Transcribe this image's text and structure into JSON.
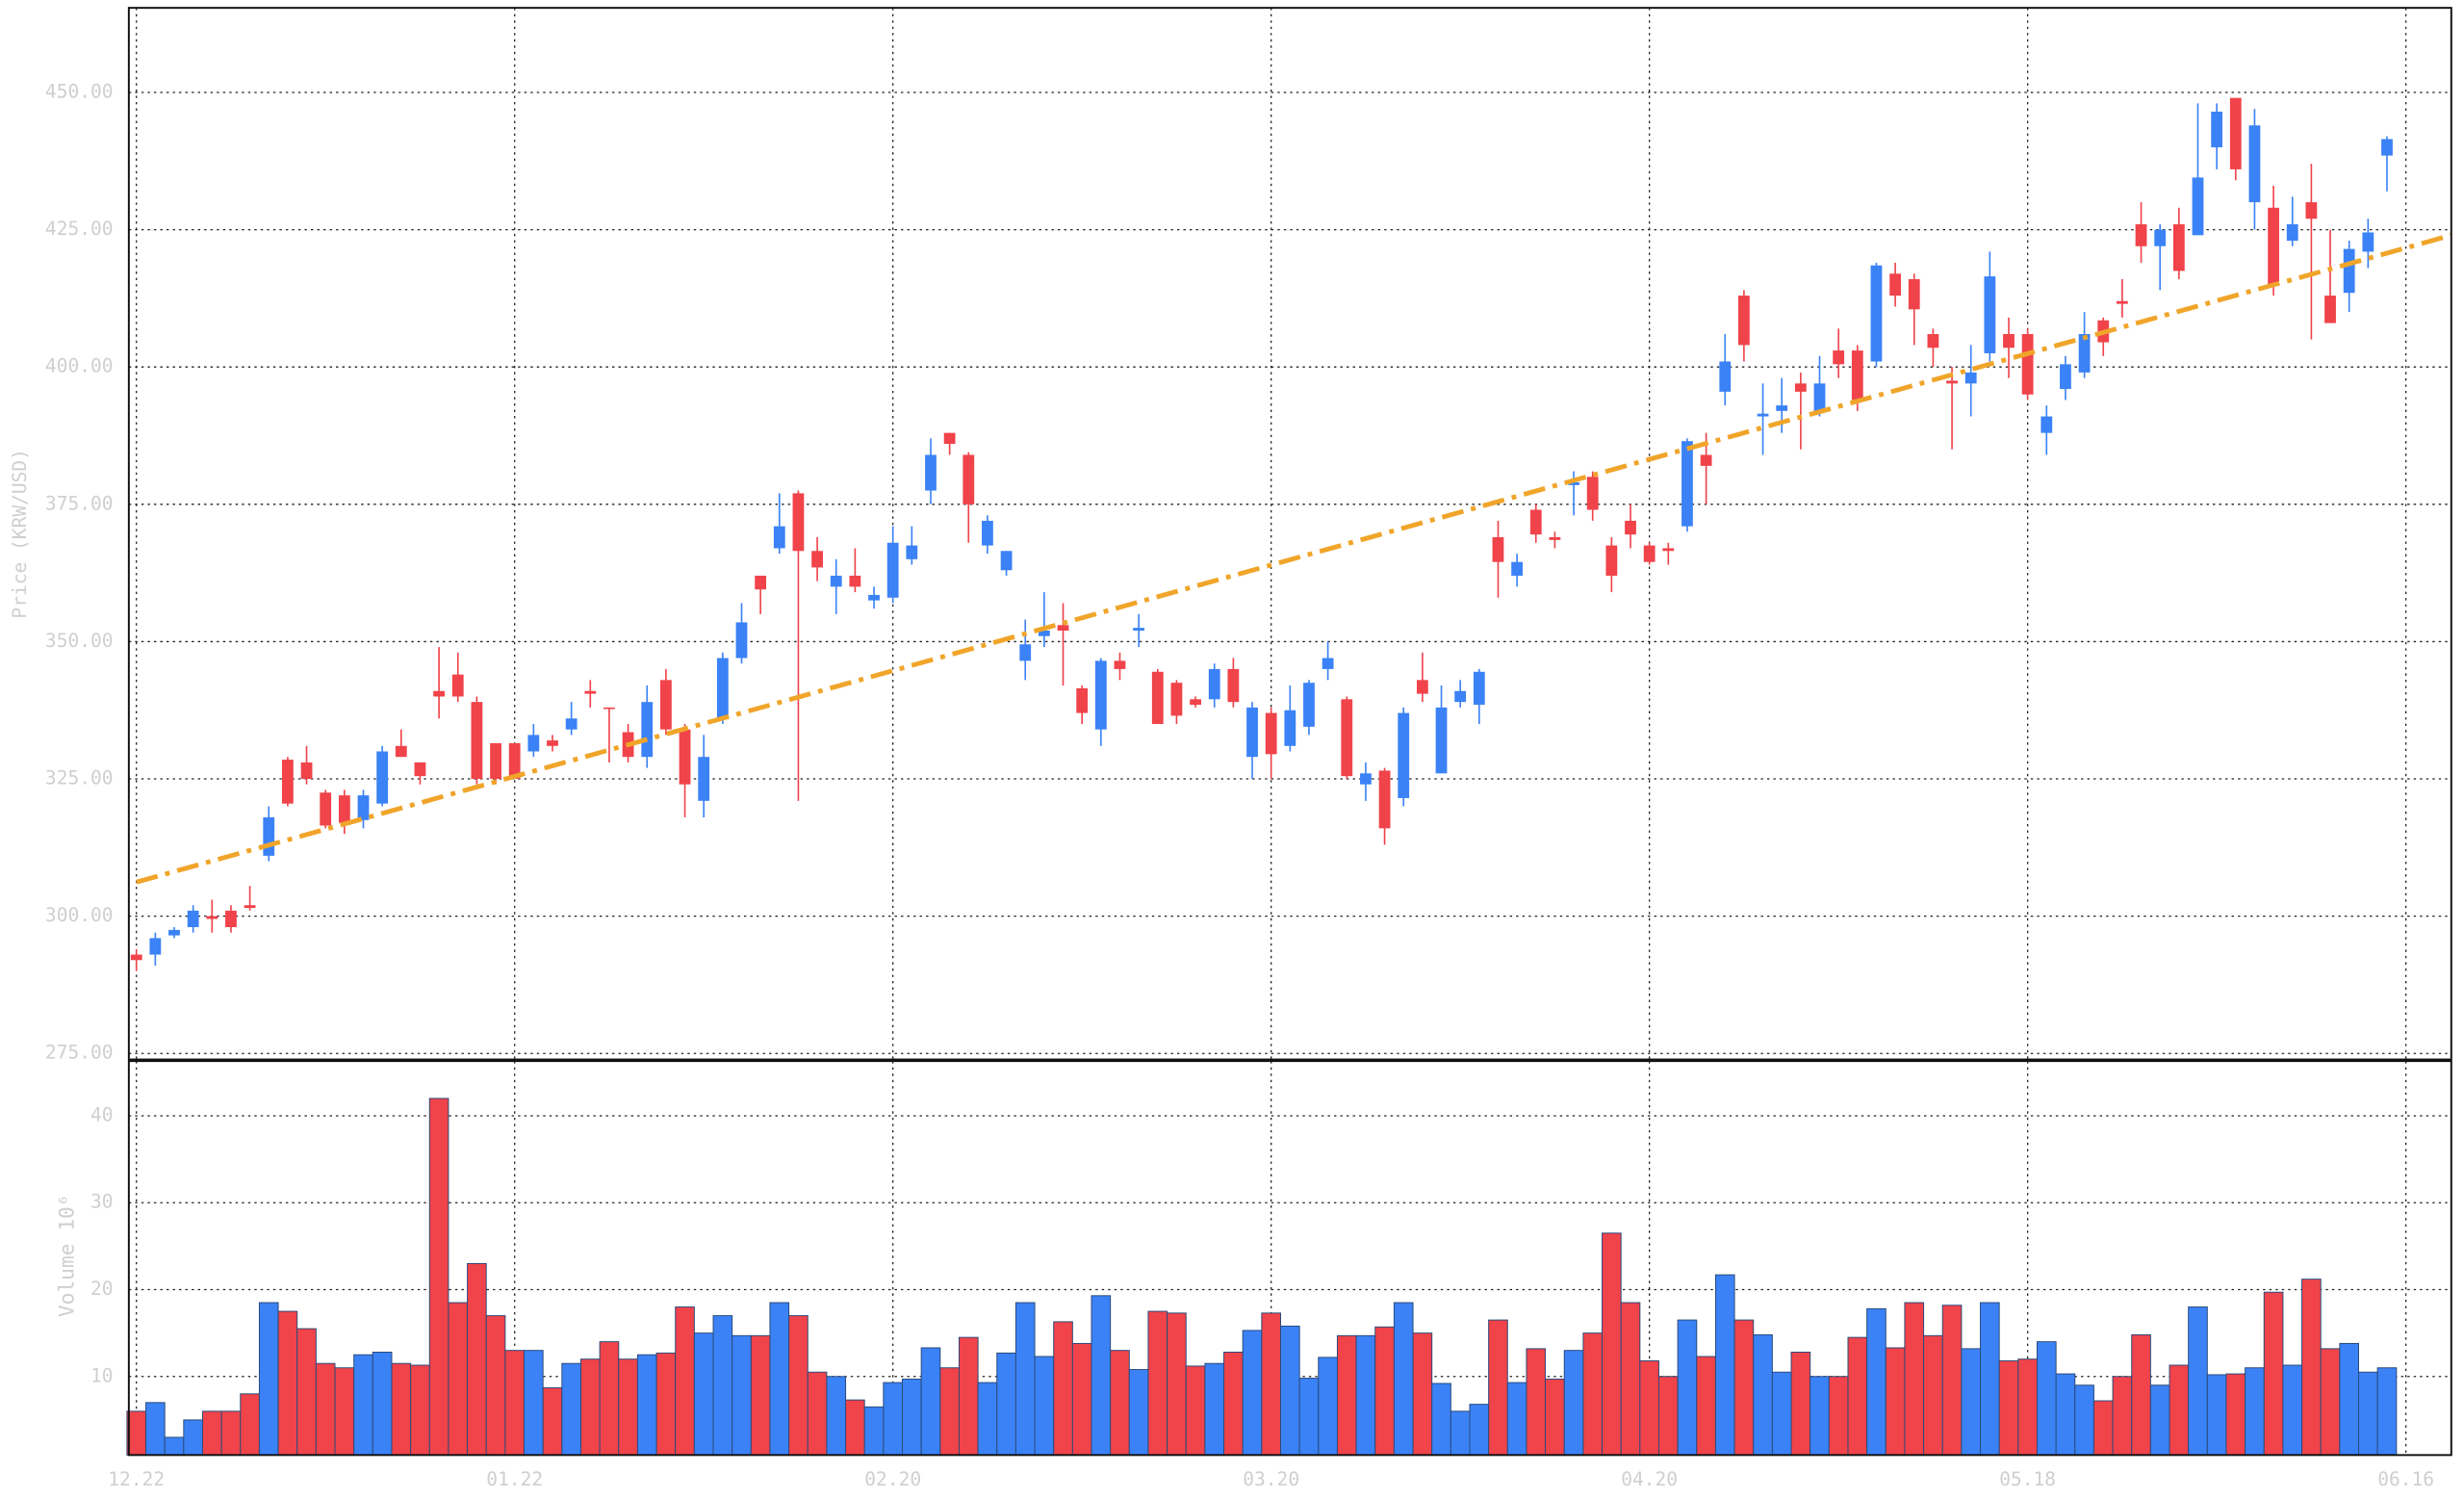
{
  "chart_data": [
    {
      "type": "candlestick",
      "ylabel": "Price (KRW/USD)",
      "open": [
        293,
        293,
        296.5,
        298,
        300,
        301,
        302,
        311,
        328.5,
        328,
        322.5,
        322,
        317.5,
        320.5,
        331,
        328,
        341,
        344,
        339,
        331.5,
        331.5,
        330,
        332,
        334,
        341,
        338,
        333.5,
        329,
        343,
        334,
        321,
        336,
        347,
        362,
        367,
        377,
        366.5,
        360,
        362,
        357.5,
        358,
        365,
        377.5,
        388,
        384,
        367.5,
        363,
        346.5,
        351,
        353,
        341.5,
        334,
        346.5,
        352,
        344.5,
        342.5,
        339.5,
        339.5,
        345,
        329,
        337,
        331,
        334.5,
        345,
        339.5,
        324,
        326.5,
        321.5,
        343,
        326,
        339,
        338.5,
        369,
        362,
        374,
        369,
        378.5,
        380,
        367.5,
        372,
        367.5,
        367,
        371,
        384,
        395.5,
        413,
        391,
        392,
        397,
        392,
        403,
        403,
        401,
        417,
        416,
        406,
        397.5,
        397,
        402.5,
        406,
        406,
        388,
        396,
        399,
        408.5,
        412,
        426,
        422,
        426,
        424,
        440,
        449,
        430,
        429,
        423,
        430,
        413,
        413.5,
        421,
        438.5
      ],
      "high": [
        294,
        297,
        298,
        302,
        303,
        302,
        305.5,
        320,
        329,
        331,
        323,
        323,
        323,
        331,
        334,
        328,
        349,
        348,
        340,
        331.5,
        331.5,
        335,
        333,
        339,
        343,
        338,
        335,
        342,
        345,
        335,
        333,
        348,
        357,
        362,
        377,
        377.5,
        369,
        365,
        367,
        360,
        371,
        371,
        387,
        388,
        384.5,
        373,
        366.5,
        354,
        359,
        357,
        342,
        347,
        348,
        355,
        345,
        343,
        340,
        346,
        347,
        339,
        338,
        342,
        343,
        350,
        340,
        328,
        327,
        338,
        348,
        342,
        343,
        345,
        372,
        366,
        375,
        370,
        381,
        381,
        369,
        375,
        368,
        368,
        387,
        388,
        406,
        414,
        397,
        398,
        399,
        402,
        407,
        404,
        419,
        419,
        417,
        407,
        400,
        404,
        421,
        409,
        407,
        393,
        402,
        410,
        409,
        416,
        430,
        426,
        429,
        448,
        448,
        449,
        447,
        433,
        431,
        437,
        425,
        423,
        427,
        442
      ],
      "low": [
        290,
        291,
        296,
        297,
        297,
        297,
        301,
        310,
        320,
        324,
        316,
        315,
        316,
        320,
        329,
        324,
        336,
        339,
        324,
        324,
        325,
        329,
        330,
        333,
        338,
        328,
        328,
        327,
        333,
        318,
        318,
        335,
        346,
        355,
        366,
        321,
        361,
        355,
        359,
        356,
        357,
        364,
        375,
        384,
        368,
        366,
        362,
        343,
        349,
        342,
        335,
        331,
        343,
        349,
        335,
        335,
        338,
        338,
        338,
        325,
        325,
        330,
        333,
        343,
        325,
        321,
        313,
        320,
        339,
        326,
        338,
        335,
        358,
        360,
        368,
        367,
        373,
        372,
        359,
        367,
        364,
        364,
        370,
        375,
        393,
        401,
        384,
        388,
        385,
        391,
        398,
        392,
        400,
        411,
        404,
        400,
        385,
        391,
        401,
        398,
        394,
        384,
        394,
        398,
        402,
        409,
        419,
        414,
        416,
        424,
        436,
        434,
        425,
        413,
        422,
        405,
        408,
        410,
        418,
        432
      ],
      "close": [
        292,
        296,
        297.5,
        301,
        299.5,
        298,
        301.5,
        318,
        320.5,
        325,
        316.5,
        317,
        322,
        330,
        329,
        325.5,
        340,
        340,
        325,
        325,
        325,
        333,
        331,
        336,
        340.5,
        337.8,
        329,
        339,
        334,
        324,
        329,
        347,
        353.5,
        359.5,
        371,
        366.5,
        363.5,
        362,
        360,
        358.5,
        368,
        367.5,
        384,
        386,
        375,
        372,
        366.5,
        349.5,
        352,
        352,
        337,
        346.5,
        345,
        352.5,
        335,
        336.5,
        338.5,
        345,
        339,
        338,
        329.5,
        337.5,
        342.5,
        347,
        325.5,
        326,
        316,
        337,
        340.5,
        338,
        341,
        344.5,
        364.5,
        364.5,
        369.5,
        368.5,
        379,
        374,
        362,
        369.5,
        364.5,
        366.5,
        386.5,
        382,
        401,
        404,
        391.5,
        393,
        395.5,
        397,
        400.5,
        394,
        418.5,
        413,
        410.5,
        403.5,
        397,
        399,
        416.5,
        403.5,
        395,
        391,
        400.5,
        406,
        404.5,
        411.5,
        422,
        425,
        417.5,
        434.5,
        446.5,
        436,
        444,
        415,
        426,
        427,
        408,
        421.5,
        424.5,
        441.5
      ],
      "up_color": "#3b82f6",
      "down_color": "#f0434a",
      "ylim": [
        273.9,
        465.4
      ],
      "yticks": [
        {
          "value": 275,
          "label": "275.00"
        },
        {
          "value": 300,
          "label": "300.00"
        },
        {
          "value": 325,
          "label": "325.00"
        },
        {
          "value": 350,
          "label": "350.00"
        },
        {
          "value": 375,
          "label": "375.00"
        },
        {
          "value": 400,
          "label": "400.00"
        },
        {
          "value": 425,
          "label": "425.00"
        },
        {
          "value": 450,
          "label": "450.00"
        }
      ],
      "grid": true,
      "trend": {
        "x": [
          0,
          122.4
        ],
        "values": [
          306.2,
          424
        ],
        "color": "#f0a52a",
        "style": "dashdot"
      }
    },
    {
      "type": "bar",
      "ylabel": "Volume 10⁶",
      "values": [
        6,
        7,
        3,
        5,
        6,
        6,
        8,
        18.5,
        17.5,
        15.5,
        11.5,
        11,
        12.5,
        12.8,
        11.5,
        11.3,
        42,
        18.5,
        23,
        17,
        13,
        13,
        8.7,
        11.5,
        12,
        14,
        12,
        12.5,
        12.7,
        18,
        15,
        17,
        14.7,
        14.7,
        18.5,
        17,
        10.5,
        10,
        7.3,
        6.5,
        9.3,
        9.7,
        13.3,
        11,
        14.5,
        9.3,
        12.7,
        18.5,
        12.3,
        16.3,
        13.8,
        19.3,
        13,
        10.8,
        17.5,
        17.3,
        11.2,
        11.5,
        12.8,
        15.3,
        17.3,
        15.8,
        9.8,
        12.2,
        14.7,
        14.7,
        15.7,
        18.5,
        15,
        9.2,
        6,
        6.8,
        16.5,
        9.3,
        13.2,
        9.7,
        13,
        15,
        26.5,
        18.5,
        11.8,
        10,
        16.5,
        12.3,
        21.7,
        16.5,
        14.8,
        10.5,
        12.8,
        10,
        10,
        14.5,
        17.8,
        13.3,
        18.5,
        14.7,
        18.2,
        13.2,
        18.5,
        11.8,
        12,
        14,
        10.3,
        9,
        7.2,
        10,
        14.8,
        9,
        11.3,
        18,
        10.2,
        10.3,
        11,
        19.7,
        11.3,
        21.2,
        13.2,
        13.8,
        10.5,
        11
      ],
      "ylim": [
        0.96,
        46.3
      ],
      "yticks": [
        10,
        20,
        30,
        40
      ],
      "grid": true,
      "xlim": [
        -0.4,
        122.4
      ],
      "xticks": [
        {
          "value": 0,
          "label": "12.22"
        },
        {
          "value": 20,
          "label": "01.22"
        },
        {
          "value": 40,
          "label": "02.20"
        },
        {
          "value": 60,
          "label": "03.20"
        },
        {
          "value": 80,
          "label": "04.20"
        },
        {
          "value": 100,
          "label": "05.18"
        },
        {
          "value": 120,
          "label": "06.16"
        }
      ]
    }
  ]
}
